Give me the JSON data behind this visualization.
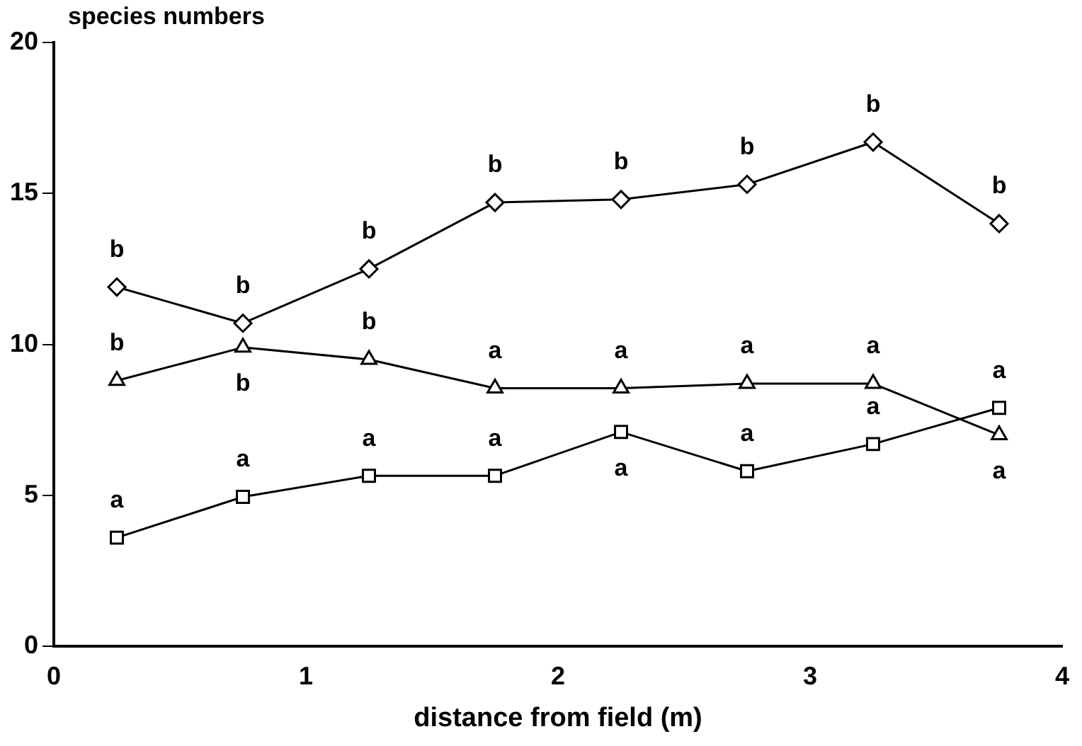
{
  "chart_data": {
    "type": "line",
    "ylabel": "species numbers",
    "xlabel": "distance from field (m)",
    "x": [
      0.25,
      0.75,
      1.25,
      1.75,
      2.25,
      2.75,
      3.25,
      3.75
    ],
    "series": [
      {
        "color": "#000000",
        "marker": "diamond",
        "values": [
          11.9,
          10.7,
          12.5,
          14.7,
          14.8,
          15.3,
          16.7,
          14.0
        ],
        "value_labels": [
          "b",
          "b",
          "b",
          "b",
          "b",
          "b",
          "b",
          "b"
        ]
      },
      {
        "color": "#000000",
        "marker": "triangle",
        "values": [
          8.8,
          9.9,
          9.5,
          8.55,
          8.55,
          8.7,
          8.7,
          7.0
        ],
        "value_labels": [
          "b",
          "b",
          "b",
          "a",
          "a",
          "a",
          "a",
          "a"
        ]
      },
      {
        "color": "#000000",
        "marker": "square",
        "values": [
          3.6,
          4.95,
          5.65,
          5.65,
          7.1,
          5.8,
          6.7,
          7.9
        ],
        "value_labels": [
          "a",
          "a",
          "a",
          "a",
          "a",
          "a",
          "a",
          "a"
        ]
      }
    ],
    "xlim": [
      0,
      4
    ],
    "xticks": [
      0,
      1,
      2,
      3,
      4
    ],
    "ylim": [
      0,
      20
    ],
    "yticks": [
      0,
      5,
      10,
      15,
      20
    ],
    "grid": false,
    "legend": false,
    "line_style": "solid"
  }
}
